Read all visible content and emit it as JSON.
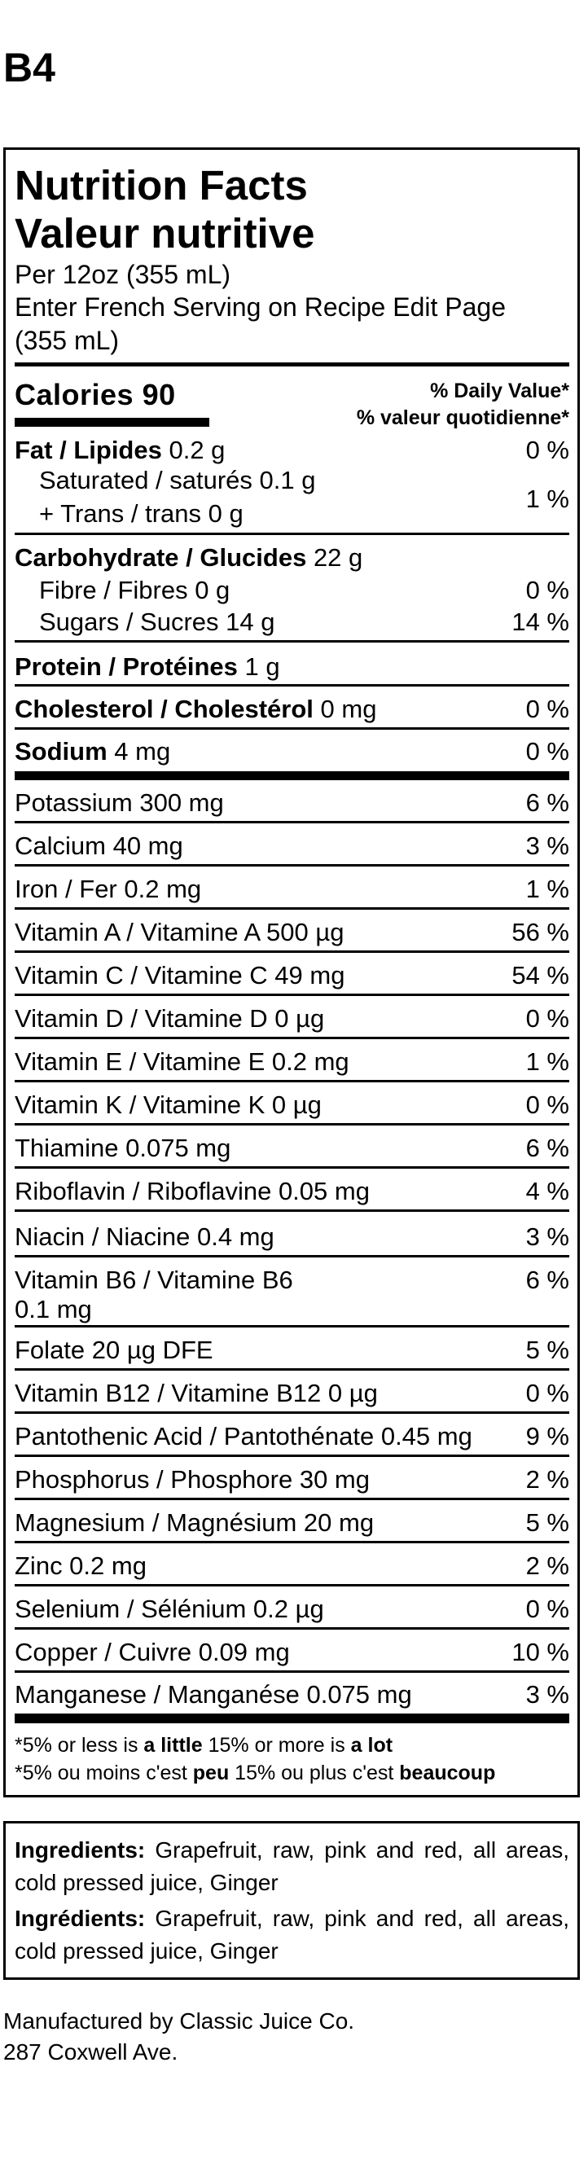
{
  "label_code": "B4",
  "header": {
    "title_en": "Nutrition Facts",
    "title_fr": "Valeur nutritive",
    "serving": "Per 12oz (355 mL)",
    "serving_fr_line1": "Enter French Serving on Recipe Edit Page",
    "serving_fr_line2": "(355 mL)"
  },
  "calories": {
    "label": "Calories 90"
  },
  "daily_value": {
    "en": "% Daily Value*",
    "fr": "% valeur quotidienne*"
  },
  "nutrients": {
    "fat": {
      "label": "Fat / Lipides",
      "amount": " 0.2 g",
      "dv": "0 %"
    },
    "saturated": {
      "label": "Saturated / saturés 0.1 g"
    },
    "trans": {
      "label": "+ Trans / trans 0 g",
      "dv": "1 %"
    },
    "carbohydrate": {
      "label": "Carbohydrate / Glucides",
      "amount": " 22 g"
    },
    "fibre": {
      "label": "Fibre / Fibres 0 g",
      "dv": "0 %"
    },
    "sugars": {
      "label": "Sugars / Sucres 14 g",
      "dv": "14 %"
    },
    "protein": {
      "label": "Protein / Protéines",
      "amount": " 1 g"
    },
    "cholesterol": {
      "label": "Cholesterol / Cholestérol",
      "amount": " 0 mg",
      "dv": "0 %"
    },
    "sodium": {
      "label": "Sodium",
      "amount": " 4 mg",
      "dv": "0 %"
    }
  },
  "minerals": [
    {
      "label": "Potassium 300 mg",
      "dv": "6 %"
    },
    {
      "label": "Calcium 40 mg",
      "dv": "3 %"
    },
    {
      "label": "Iron / Fer 0.2 mg",
      "dv": "1 %"
    },
    {
      "label": "Vitamin A / Vitamine A 500 µg",
      "dv": "56 %"
    },
    {
      "label": "Vitamin C / Vitamine C 49 mg",
      "dv": "54 %"
    },
    {
      "label": "Vitamin D / Vitamine D 0 µg",
      "dv": "0 %"
    },
    {
      "label": "Vitamin E / Vitamine E 0.2 mg",
      "dv": "1 %"
    },
    {
      "label": "Vitamin K / Vitamine K 0 µg",
      "dv": "0 %"
    },
    {
      "label": "Thiamine 0.075 mg",
      "dv": "6 %"
    },
    {
      "label": "Riboflavin / Riboflavine 0.05 mg",
      "dv": "4 %"
    },
    {
      "label": "Niacin / Niacine 0.4 mg",
      "dv": "3 %"
    },
    {
      "label": "Vitamin B6 / Vitamine B6",
      "label2": "0.1 mg",
      "dv": "6 %"
    },
    {
      "label": "Folate 20 µg DFE",
      "dv": "5 %"
    },
    {
      "label": "Vitamin B12 / Vitamine B12 0 µg",
      "dv": "0 %"
    },
    {
      "label": "Pantothenic Acid / Pantothénate 0.45 mg",
      "dv": "9 %"
    },
    {
      "label": "Phosphorus / Phosphore 30 mg",
      "dv": "2 %"
    },
    {
      "label": "Magnesium / Magnésium 20 mg",
      "dv": "5 %"
    },
    {
      "label": "Zinc 0.2 mg",
      "dv": "2 %"
    },
    {
      "label": "Selenium / Sélénium 0.2 µg",
      "dv": "0 %"
    },
    {
      "label": "Copper / Cuivre 0.09 mg",
      "dv": "10 %"
    },
    {
      "label": "Manganese / Manganése 0.075 mg",
      "dv": "3 %"
    }
  ],
  "footnote": {
    "en": {
      "a": "*5% or less is ",
      "b": "a little",
      "c": " 15% or more is ",
      "d": "a lot"
    },
    "fr": {
      "a": "*5% ou moins c'est ",
      "b": "peu",
      "c": " 15% ou plus c'est ",
      "d": "beaucoup"
    }
  },
  "ingredients": {
    "en_label": "Ingredients:",
    "en_text": " Grapefruit, raw, pink and red, all areas, cold pressed juice, Ginger",
    "fr_label": "Ingrédients:",
    "fr_text": " Grapefruit, raw, pink and red, all areas, cold pressed juice, Ginger"
  },
  "manufacturer": {
    "line1": "Manufactured by Classic Juice Co.",
    "line2": "287 Coxwell Ave."
  }
}
